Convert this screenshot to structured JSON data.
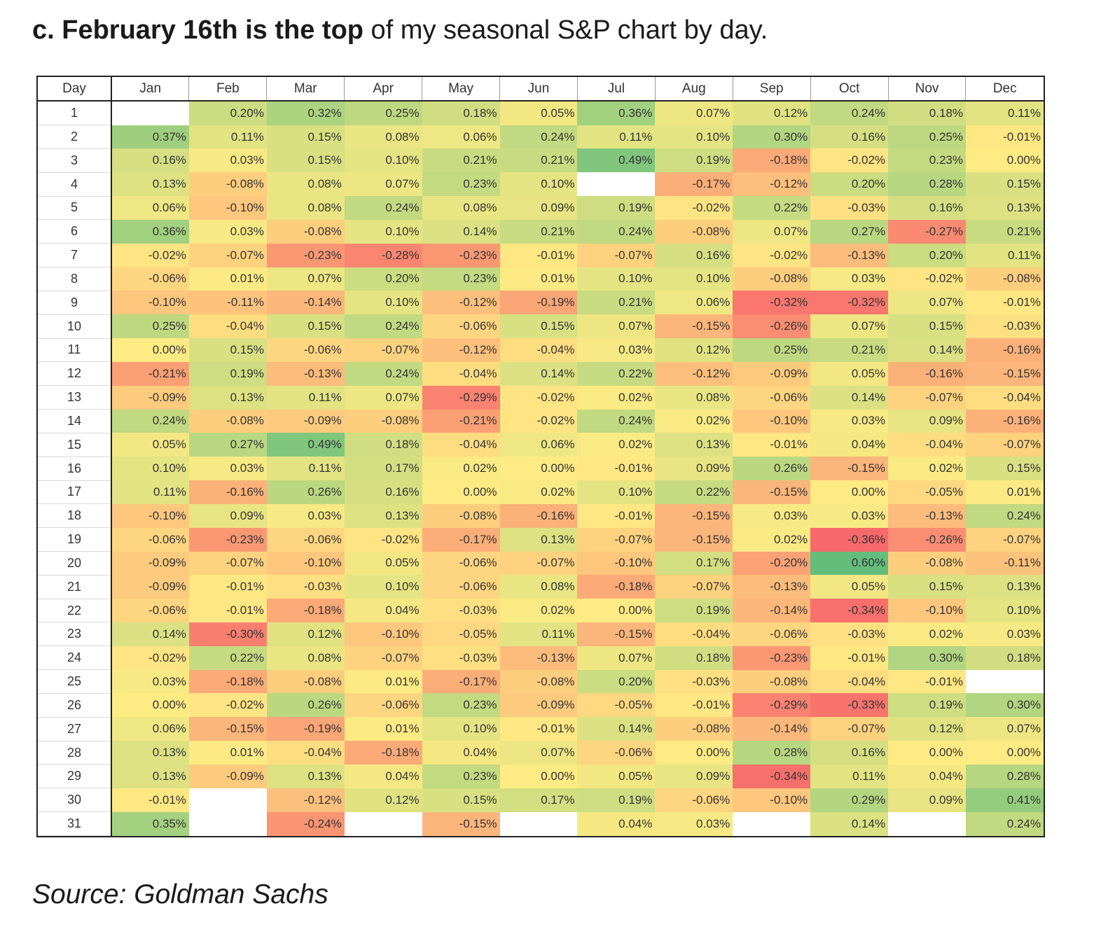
{
  "heading": {
    "bold": "c. February 16th is the top",
    "rest": " of my seasonal S&P chart by day."
  },
  "source": "Source: Goldman Sachs",
  "chart_data": {
    "type": "heatmap",
    "row_header": "Day",
    "columns": [
      "Jan",
      "Feb",
      "Mar",
      "Apr",
      "May",
      "Jun",
      "Jul",
      "Aug",
      "Sep",
      "Oct",
      "Nov",
      "Dec"
    ],
    "rows": [
      "1",
      "2",
      "3",
      "4",
      "5",
      "6",
      "7",
      "8",
      "9",
      "10",
      "11",
      "12",
      "13",
      "14",
      "15",
      "16",
      "17",
      "18",
      "19",
      "20",
      "21",
      "22",
      "23",
      "24",
      "25",
      "26",
      "27",
      "28",
      "29",
      "30",
      "31"
    ],
    "unit": "%",
    "color_scale": {
      "negative": "#f8696b",
      "neutral": "#ffeb84",
      "positive": "#63be7b",
      "min": -0.36,
      "max": 0.6
    },
    "values": [
      [
        null,
        0.2,
        0.32,
        0.25,
        0.18,
        0.05,
        0.36,
        0.07,
        0.12,
        0.24,
        0.18,
        0.11
      ],
      [
        0.37,
        0.11,
        0.15,
        0.08,
        0.06,
        0.24,
        0.11,
        0.1,
        0.3,
        0.16,
        0.25,
        -0.01
      ],
      [
        0.16,
        0.03,
        0.15,
        0.1,
        0.21,
        0.21,
        0.49,
        0.19,
        -0.18,
        -0.02,
        0.23,
        0.0
      ],
      [
        0.13,
        -0.08,
        0.08,
        0.07,
        0.23,
        0.1,
        null,
        -0.17,
        -0.12,
        0.2,
        0.28,
        0.15
      ],
      [
        0.06,
        -0.1,
        0.08,
        0.24,
        0.08,
        0.09,
        0.19,
        -0.02,
        0.22,
        -0.03,
        0.16,
        0.13
      ],
      [
        0.36,
        0.03,
        -0.08,
        0.1,
        0.14,
        0.21,
        0.24,
        -0.08,
        0.07,
        0.27,
        -0.27,
        0.21
      ],
      [
        -0.02,
        -0.07,
        -0.23,
        -0.28,
        -0.23,
        -0.01,
        -0.07,
        0.16,
        -0.02,
        -0.13,
        0.2,
        0.11
      ],
      [
        -0.06,
        0.01,
        0.07,
        0.2,
        0.23,
        0.01,
        0.1,
        0.1,
        -0.08,
        0.03,
        -0.02,
        -0.08
      ],
      [
        -0.1,
        -0.11,
        -0.14,
        0.1,
        -0.12,
        -0.19,
        0.21,
        0.06,
        -0.32,
        -0.32,
        0.07,
        -0.01
      ],
      [
        0.25,
        -0.04,
        0.15,
        0.24,
        -0.06,
        0.15,
        0.07,
        -0.15,
        -0.26,
        0.07,
        0.15,
        -0.03
      ],
      [
        0.0,
        0.15,
        -0.06,
        -0.07,
        -0.12,
        -0.04,
        0.03,
        0.12,
        0.25,
        0.21,
        0.14,
        -0.16
      ],
      [
        -0.21,
        0.19,
        -0.13,
        0.24,
        -0.04,
        0.14,
        0.22,
        -0.12,
        -0.09,
        0.05,
        -0.16,
        -0.15
      ],
      [
        -0.09,
        0.13,
        0.11,
        0.07,
        -0.29,
        -0.02,
        0.02,
        0.08,
        -0.06,
        0.14,
        -0.07,
        -0.04
      ],
      [
        0.24,
        -0.08,
        -0.09,
        -0.08,
        -0.21,
        -0.02,
        0.24,
        0.02,
        -0.1,
        0.03,
        0.09,
        -0.16
      ],
      [
        0.05,
        0.27,
        0.49,
        0.18,
        -0.04,
        0.06,
        0.02,
        0.13,
        -0.01,
        0.04,
        -0.04,
        -0.07
      ],
      [
        0.1,
        0.03,
        0.11,
        0.17,
        0.02,
        0.0,
        -0.01,
        0.09,
        0.26,
        -0.15,
        0.02,
        0.15
      ],
      [
        0.11,
        -0.16,
        0.26,
        0.16,
        0.0,
        0.02,
        0.1,
        0.22,
        -0.15,
        0.0,
        -0.05,
        0.01
      ],
      [
        -0.1,
        0.09,
        0.03,
        0.13,
        -0.08,
        -0.16,
        -0.01,
        -0.15,
        0.03,
        0.03,
        -0.13,
        0.24
      ],
      [
        -0.06,
        -0.23,
        -0.06,
        -0.02,
        -0.17,
        0.13,
        -0.07,
        -0.15,
        0.02,
        -0.36,
        -0.26,
        -0.07
      ],
      [
        -0.09,
        -0.07,
        -0.1,
        0.05,
        -0.06,
        -0.07,
        -0.1,
        0.17,
        -0.2,
        0.6,
        -0.08,
        -0.11
      ],
      [
        -0.09,
        -0.01,
        -0.03,
        0.1,
        -0.06,
        0.08,
        -0.18,
        -0.07,
        -0.13,
        0.05,
        0.15,
        0.13
      ],
      [
        -0.06,
        -0.01,
        -0.18,
        0.04,
        -0.03,
        0.02,
        0.0,
        0.19,
        -0.14,
        -0.34,
        -0.1,
        0.1
      ],
      [
        0.14,
        -0.3,
        0.12,
        -0.1,
        -0.05,
        0.11,
        -0.15,
        -0.04,
        -0.06,
        -0.03,
        0.02,
        0.03
      ],
      [
        -0.02,
        0.22,
        0.08,
        -0.07,
        -0.03,
        -0.13,
        0.07,
        0.18,
        -0.23,
        -0.01,
        0.3,
        0.18
      ],
      [
        0.03,
        -0.18,
        -0.08,
        0.01,
        -0.17,
        -0.08,
        0.2,
        -0.03,
        -0.08,
        -0.04,
        -0.01,
        null
      ],
      [
        0.0,
        -0.02,
        0.26,
        -0.06,
        0.23,
        -0.09,
        -0.05,
        -0.01,
        -0.29,
        -0.33,
        0.19,
        0.3
      ],
      [
        0.06,
        -0.15,
        -0.19,
        0.01,
        0.1,
        -0.01,
        0.14,
        -0.08,
        -0.14,
        -0.07,
        0.12,
        0.07
      ],
      [
        0.13,
        0.01,
        -0.04,
        -0.18,
        0.04,
        0.07,
        -0.06,
        0.0,
        0.28,
        0.16,
        0.0,
        0.0
      ],
      [
        0.13,
        -0.09,
        0.13,
        0.04,
        0.23,
        0.0,
        0.05,
        0.09,
        -0.34,
        0.11,
        0.04,
        0.28
      ],
      [
        -0.01,
        null,
        -0.12,
        0.12,
        0.15,
        0.17,
        0.19,
        -0.06,
        -0.1,
        0.29,
        0.09,
        0.41
      ],
      [
        0.35,
        null,
        -0.24,
        null,
        -0.15,
        null,
        0.04,
        0.03,
        null,
        0.14,
        null,
        0.24
      ]
    ]
  }
}
